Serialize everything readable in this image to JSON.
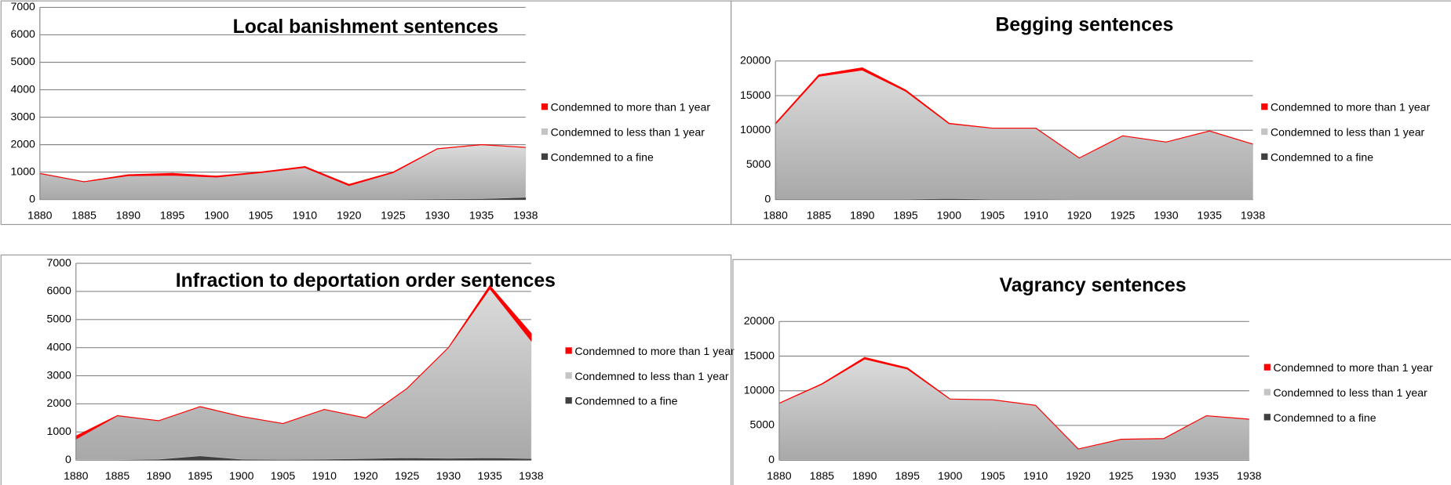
{
  "chart_data": [
    {
      "type": "area",
      "stacked": true,
      "title": "Local banishment sentences",
      "categories": [
        "1880",
        "1885",
        "1890",
        "1895",
        "1900",
        "1905",
        "1910",
        "1920",
        "1925",
        "1930",
        "1935",
        "1938"
      ],
      "series": [
        {
          "name": "Condemned to more than 1 year",
          "color": "#ff0000",
          "values": [
            0,
            0,
            30,
            60,
            30,
            20,
            30,
            40,
            20,
            0,
            0,
            0
          ]
        },
        {
          "name": "Condemned to less than 1 year",
          "color": "#c4c4c4",
          "values": [
            940,
            640,
            860,
            880,
            810,
            970,
            1160,
            500,
            970,
            1830,
            1970,
            1820
          ]
        },
        {
          "name": "Condemned to a fine",
          "color": "#404040",
          "values": [
            10,
            10,
            10,
            10,
            10,
            10,
            10,
            10,
            10,
            20,
            30,
            80
          ]
        }
      ],
      "ylim": [
        0,
        7000
      ],
      "yticks": [
        0,
        1000,
        2000,
        3000,
        4000,
        5000,
        6000,
        7000
      ],
      "grid": true,
      "legend": "right"
    },
    {
      "type": "area",
      "stacked": true,
      "title": "Begging sentences",
      "categories": [
        "1880",
        "1885",
        "1890",
        "1895",
        "1900",
        "1905",
        "1910",
        "1920",
        "1925",
        "1930",
        "1935",
        "1938"
      ],
      "series": [
        {
          "name": "Condemned to more than 1 year",
          "color": "#ff0000",
          "values": [
            100,
            200,
            300,
            150,
            50,
            0,
            0,
            0,
            0,
            0,
            0,
            0
          ]
        },
        {
          "name": "Condemned to less than 1 year",
          "color": "#c4c4c4",
          "values": [
            10850,
            17750,
            18650,
            15600,
            10800,
            10250,
            10250,
            5970,
            9170,
            8270,
            9870,
            7970
          ]
        },
        {
          "name": "Condemned to a fine",
          "color": "#404040",
          "values": [
            50,
            50,
            50,
            50,
            150,
            50,
            50,
            30,
            30,
            30,
            30,
            30
          ]
        }
      ],
      "ylim": [
        0,
        20000
      ],
      "yticks": [
        0,
        5000,
        10000,
        15000,
        20000
      ],
      "grid": true,
      "legend": "right"
    },
    {
      "type": "area",
      "stacked": true,
      "title": "Infraction to deportation order sentences",
      "categories": [
        "1880",
        "1885",
        "1890",
        "1895",
        "1900",
        "1905",
        "1910",
        "1920",
        "1925",
        "1930",
        "1935",
        "1938"
      ],
      "series": [
        {
          "name": "Condemned to more than 1 year",
          "color": "#ff0000",
          "values": [
            100,
            0,
            0,
            0,
            0,
            0,
            0,
            0,
            0,
            0,
            100,
            250
          ]
        },
        {
          "name": "Condemned to less than 1 year",
          "color": "#c4c4c4",
          "values": [
            740,
            1570,
            1370,
            1750,
            1520,
            1280,
            1770,
            1450,
            2470,
            3940,
            6020,
            4200
          ]
        },
        {
          "name": "Condemned to a fine",
          "color": "#404040",
          "values": [
            10,
            10,
            30,
            150,
            30,
            20,
            30,
            50,
            80,
            60,
            80,
            50
          ]
        }
      ],
      "ylim": [
        0,
        7000
      ],
      "yticks": [
        0,
        1000,
        2000,
        3000,
        4000,
        5000,
        6000,
        7000
      ],
      "grid": true,
      "legend": "right"
    },
    {
      "type": "area",
      "stacked": true,
      "title": "Vagrancy sentences",
      "categories": [
        "1880",
        "1885",
        "1890",
        "1895",
        "1900",
        "1905",
        "1910",
        "1920",
        "1925",
        "1930",
        "1935",
        "1938"
      ],
      "series": [
        {
          "name": "Condemned to more than 1 year",
          "color": "#ff0000",
          "values": [
            0,
            50,
            200,
            150,
            0,
            0,
            0,
            0,
            0,
            0,
            0,
            0
          ]
        },
        {
          "name": "Condemned to less than 1 year",
          "color": "#c4c4c4",
          "values": [
            8150,
            10900,
            14550,
            13100,
            8750,
            8650,
            7850,
            1550,
            2950,
            3050,
            6350,
            5850
          ]
        },
        {
          "name": "Condemned to a fine",
          "color": "#404040",
          "values": [
            50,
            50,
            50,
            50,
            50,
            50,
            50,
            50,
            50,
            50,
            50,
            50
          ]
        }
      ],
      "ylim": [
        0,
        20000
      ],
      "yticks": [
        0,
        5000,
        10000,
        15000,
        20000
      ],
      "grid": true,
      "legend": "right"
    }
  ]
}
